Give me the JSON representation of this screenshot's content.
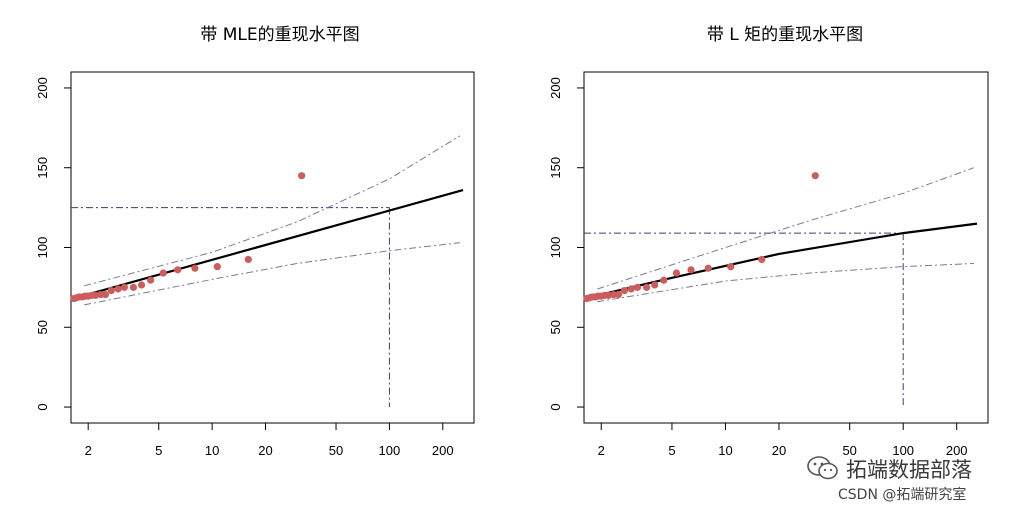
{
  "watermark": {
    "line1": "拓端数据部落",
    "line2": "CSDN @拓端研究室",
    "icon": "wechat-icon"
  },
  "colors": {
    "points": "#cd5c5c",
    "fit_line": "#000000",
    "confidence": "#7a7a9a",
    "reference": "#3c3c78"
  },
  "chart_data": [
    {
      "type": "line",
      "title": "带 MLE的重现水平图",
      "xlabel": "",
      "ylabel": "",
      "x_scale": "log",
      "xlim": [
        1.6,
        300
      ],
      "ylim": [
        -10,
        210
      ],
      "x_ticks": [
        2,
        5,
        10,
        20,
        50,
        100,
        200
      ],
      "y_ticks": [
        0,
        50,
        100,
        150,
        200
      ],
      "grid": false,
      "points": [
        [
          1.66,
          68
        ],
        [
          1.72,
          68.5
        ],
        [
          1.78,
          69
        ],
        [
          1.85,
          69
        ],
        [
          1.92,
          69.5
        ],
        [
          2.0,
          69.5
        ],
        [
          2.1,
          70
        ],
        [
          2.2,
          70
        ],
        [
          2.35,
          70.5
        ],
        [
          2.5,
          70.5
        ],
        [
          2.7,
          73
        ],
        [
          2.95,
          74
        ],
        [
          3.2,
          75
        ],
        [
          3.6,
          75
        ],
        [
          4.0,
          76.5
        ],
        [
          4.5,
          79.5
        ],
        [
          5.3,
          84
        ],
        [
          6.4,
          86
        ],
        [
          8.0,
          87
        ],
        [
          10.7,
          88
        ],
        [
          16.0,
          92.5
        ],
        [
          32.0,
          145
        ]
      ],
      "series": [
        {
          "name": "",
          "role": "fit",
          "x": [
            1.9,
            260
          ],
          "y": [
            70,
            136
          ]
        },
        {
          "name": "",
          "role": "upper",
          "x": [
            1.9,
            10,
            30,
            100,
            250
          ],
          "y": [
            76,
            97,
            116,
            143,
            170
          ]
        },
        {
          "name": "",
          "role": "lower",
          "x": [
            1.9,
            10,
            30,
            100,
            250
          ],
          "y": [
            64,
            80,
            90,
            98,
            103
          ]
        }
      ],
      "return_period": 100,
      "return_level": 125
    },
    {
      "type": "line",
      "title": "带 L 矩的重现水平图",
      "xlabel": "",
      "ylabel": "",
      "x_scale": "log",
      "xlim": [
        1.6,
        300
      ],
      "ylim": [
        -10,
        210
      ],
      "x_ticks": [
        2,
        5,
        10,
        20,
        50,
        100,
        200
      ],
      "y_ticks": [
        0,
        50,
        100,
        150,
        200
      ],
      "grid": false,
      "points": [
        [
          1.66,
          68
        ],
        [
          1.72,
          68.5
        ],
        [
          1.78,
          69
        ],
        [
          1.85,
          69
        ],
        [
          1.92,
          69.5
        ],
        [
          2.0,
          69.5
        ],
        [
          2.1,
          70
        ],
        [
          2.2,
          70
        ],
        [
          2.35,
          70.5
        ],
        [
          2.5,
          70.5
        ],
        [
          2.7,
          73
        ],
        [
          2.95,
          74
        ],
        [
          3.2,
          75
        ],
        [
          3.6,
          75
        ],
        [
          4.0,
          76.5
        ],
        [
          4.5,
          79.5
        ],
        [
          5.3,
          84
        ],
        [
          6.4,
          86
        ],
        [
          8.0,
          87
        ],
        [
          10.7,
          88
        ],
        [
          16.0,
          92.5
        ],
        [
          32.0,
          145
        ]
      ],
      "series": [
        {
          "name": "",
          "role": "fit",
          "x": [
            1.9,
            5,
            20,
            100,
            260
          ],
          "y": [
            70,
            81,
            96,
            109,
            115
          ]
        },
        {
          "name": "",
          "role": "upper",
          "x": [
            1.9,
            10,
            30,
            100,
            250
          ],
          "y": [
            74,
            100,
            117,
            134,
            150
          ]
        },
        {
          "name": "",
          "role": "lower",
          "x": [
            1.9,
            10,
            30,
            100,
            250
          ],
          "y": [
            66,
            79,
            84,
            88,
            90
          ]
        }
      ],
      "return_period": 100,
      "return_level": 109
    }
  ]
}
